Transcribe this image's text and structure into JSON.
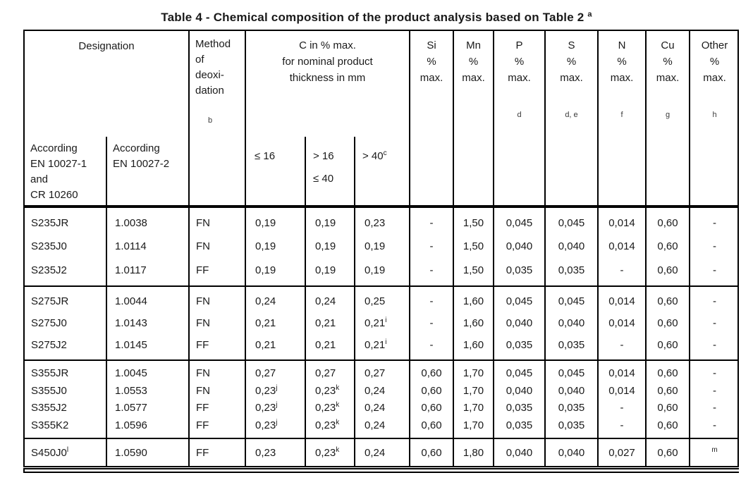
{
  "page": {
    "title_text": "Table 4 - Chemical composition of the product analysis based on Table 2",
    "title_sup": "a"
  },
  "header": {
    "designation": "Designation",
    "according_1": [
      "According",
      "EN 10027-1",
      "and",
      "CR 10260"
    ],
    "according_2": [
      "According",
      "EN 10027-2"
    ],
    "method": [
      "Method",
      "of",
      "deoxi-",
      "dation"
    ],
    "method_note": "b",
    "carbon": [
      "C in % max.",
      "for nominal product",
      "thickness in mm"
    ],
    "carbon_sub1": "≤ 16",
    "carbon_sub2a": "> 16",
    "carbon_sub2b": "≤ 40",
    "carbon_sub3": "> 40",
    "carbon_sub3_sup": "c",
    "elements": [
      {
        "symbol": "Si",
        "pct": "%",
        "max": "max.",
        "note": ""
      },
      {
        "symbol": "Mn",
        "pct": "%",
        "max": "max.",
        "note": ""
      },
      {
        "symbol": "P",
        "pct": "%",
        "max": "max.",
        "note": "d"
      },
      {
        "symbol": "S",
        "pct": "%",
        "max": "max.",
        "note": "d, e"
      },
      {
        "symbol": "N",
        "pct": "%",
        "max": "max.",
        "note": "f"
      },
      {
        "symbol": "Cu",
        "pct": "%",
        "max": "max.",
        "note": "g"
      },
      {
        "symbol": "Other",
        "pct": "%",
        "max": "max.",
        "note": "h"
      }
    ]
  },
  "groups": [
    {
      "rows": [
        [
          "S235JR",
          "1.0038",
          "FN",
          "0,19",
          "0,19",
          "0,23",
          "-",
          "1,50",
          "0,045",
          "0,045",
          "0,014",
          "0,60",
          "-"
        ],
        [
          "S235J0",
          "1.0114",
          "FN",
          "0,19",
          "0,19",
          "0,19",
          "-",
          "1,50",
          "0,040",
          "0,040",
          "0,014",
          "0,60",
          "-"
        ],
        [
          "S235J2",
          "1.0117",
          "FF",
          "0,19",
          "0,19",
          "0,19",
          "-",
          "1,50",
          "0,035",
          "0,035",
          "-",
          "0,60",
          "-"
        ]
      ]
    },
    {
      "rows": [
        [
          "S275JR",
          "1.0044",
          "FN",
          "0,24",
          "0,24",
          "0,25",
          "-",
          "1,60",
          "0,045",
          "0,045",
          "0,014",
          "0,60",
          "-"
        ],
        [
          "S275J0",
          "1.0143",
          "FN",
          "0,21",
          "0,21",
          "0,21^i",
          "-",
          "1,60",
          "0,040",
          "0,040",
          "0,014",
          "0,60",
          "-"
        ],
        [
          "S275J2",
          "1.0145",
          "FF",
          "0,21",
          "0,21",
          "0,21^i",
          "-",
          "1,60",
          "0,035",
          "0,035",
          "-",
          "0,60",
          "-"
        ]
      ]
    },
    {
      "rows": [
        [
          "S355JR",
          "1.0045",
          "FN",
          "0,27",
          "0,27",
          "0,27",
          "0,60",
          "1,70",
          "0,045",
          "0,045",
          "0,014",
          "0,60",
          "-"
        ],
        [
          "S355J0",
          "1.0553",
          "FN",
          "0,23^j",
          "0,23^k",
          "0,24",
          "0,60",
          "1,70",
          "0,040",
          "0,040",
          "0,014",
          "0,60",
          "-"
        ],
        [
          "S355J2",
          "1.0577",
          "FF",
          "0,23^j",
          "0,23^k",
          "0,24",
          "0,60",
          "1,70",
          "0,035",
          "0,035",
          "-",
          "0,60",
          "-"
        ],
        [
          "S355K2",
          "1.0596",
          "FF",
          "0,23^j",
          "0,23^k",
          "0,24",
          "0,60",
          "1,70",
          "0,035",
          "0,035",
          "-",
          "0,60",
          "-"
        ]
      ]
    },
    {
      "rows": [
        [
          "S450J0^l",
          "1.0590",
          "FF",
          "0,23",
          "0,23^k",
          "0,24",
          "0,60",
          "1,80",
          "0,040",
          "0,040",
          "0,027",
          "0,60",
          "^m"
        ]
      ]
    }
  ]
}
